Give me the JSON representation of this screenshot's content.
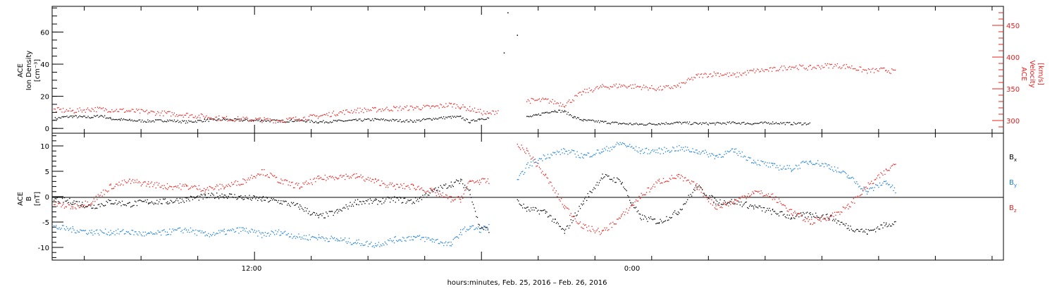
{
  "chart_data": [
    {
      "type": "scatter",
      "panel": "top",
      "ylabel_left": [
        "ACE",
        "Ion Density",
        "[cm⁻³]"
      ],
      "ylabel_right": [
        "ACE",
        "Velocity",
        "[km/s]"
      ],
      "y_left_ticks": [
        "0",
        "20",
        "40",
        "60"
      ],
      "y_left_lim": [
        -3,
        76
      ],
      "y_right_ticks": [
        "300",
        "350",
        "400",
        "450"
      ],
      "y_right_lim": [
        280,
        480
      ],
      "colors": {
        "density": "#000000",
        "velocity": "#e8201e"
      },
      "series": [
        {
          "axis": "left",
          "color": "#000000",
          "points": [
            [
              0,
              6.0
            ],
            [
              0.5,
              7
            ],
            [
              1,
              7.5
            ],
            [
              1.5,
              7
            ],
            [
              2,
              7
            ],
            [
              2.5,
              8
            ],
            [
              3,
              6
            ],
            [
              3.5,
              5.5
            ],
            [
              4,
              5
            ],
            [
              5,
              4.5
            ],
            [
              6,
              5
            ],
            [
              7,
              4
            ],
            [
              8,
              5
            ],
            [
              9,
              5.5
            ],
            [
              10,
              5
            ],
            [
              11,
              5
            ],
            [
              12,
              4.5
            ],
            [
              13,
              5
            ],
            [
              14,
              4
            ],
            [
              15,
              4.5
            ],
            [
              16,
              5
            ],
            [
              17,
              5.5
            ],
            [
              18,
              5
            ],
            [
              19,
              4.5
            ],
            [
              20,
              6
            ],
            [
              21,
              7
            ],
            [
              21.5,
              7
            ],
            [
              22,
              4
            ],
            [
              22.5,
              6
            ],
            [
              23,
              6.5
            ],
            [
              25,
              7
            ],
            [
              25.5,
              8
            ],
            [
              26,
              10
            ],
            [
              26.5,
              11
            ],
            [
              27,
              10.5
            ],
            [
              27.5,
              7
            ],
            [
              28,
              5
            ],
            [
              29,
              4
            ],
            [
              30,
              3
            ],
            [
              31,
              2.5
            ],
            [
              32,
              3
            ],
            [
              33,
              3.5
            ],
            [
              34,
              3
            ],
            [
              35,
              3
            ],
            [
              36,
              3.5
            ],
            [
              37,
              3
            ],
            [
              38,
              3.5
            ],
            [
              39,
              3
            ],
            [
              40,
              3
            ]
          ]
        },
        {
          "axis": "right",
          "color": "#e8201e",
          "points": [
            [
              0,
              317
            ],
            [
              1,
              315
            ],
            [
              2,
              318
            ],
            [
              3,
              317
            ],
            [
              4,
              315
            ],
            [
              5,
              313
            ],
            [
              6,
              311
            ],
            [
              7,
              309
            ],
            [
              8,
              306
            ],
            [
              9,
              303
            ],
            [
              10,
              302
            ],
            [
              11,
              301
            ],
            [
              12,
              300
            ],
            [
              13,
              303
            ],
            [
              14,
              307
            ],
            [
              15,
              312
            ],
            [
              16,
              316
            ],
            [
              17,
              317
            ],
            [
              18,
              319
            ],
            [
              19,
              320
            ],
            [
              20,
              321
            ],
            [
              21,
              325
            ],
            [
              21.5,
              322
            ],
            [
              22,
              318
            ],
            [
              23,
              310
            ],
            [
              23.5,
              316
            ],
            [
              25,
              331
            ],
            [
              26,
              332
            ],
            [
              27,
              325
            ],
            [
              28,
              345
            ],
            [
              29,
              353
            ],
            [
              30,
              355
            ],
            [
              31,
              353
            ],
            [
              32,
              350
            ],
            [
              33,
              354
            ],
            [
              34,
              370
            ],
            [
              35,
              374
            ],
            [
              36,
              371
            ],
            [
              37,
              378
            ],
            [
              38,
              380
            ],
            [
              39,
              385
            ],
            [
              40,
              383
            ],
            [
              41,
              387
            ],
            [
              42,
              385
            ],
            [
              43,
              378
            ],
            [
              44,
              380
            ],
            [
              44.5,
              376
            ]
          ]
        },
        {
          "axis": "left",
          "color": "#000000",
          "outliers": [
            [
              24,
              72
            ],
            [
              24.5,
              58
            ],
            [
              23.8,
              47
            ]
          ]
        }
      ]
    },
    {
      "type": "scatter",
      "panel": "bottom",
      "ylabel_left": [
        "ACE",
        "B",
        "[nT]"
      ],
      "y_ticks": [
        "-10",
        "-5",
        "0",
        "5",
        "10"
      ],
      "ylim": [
        -12.5,
        12.5
      ],
      "legend": [
        "B",
        "B",
        "B"
      ],
      "legend_sub": [
        "x",
        "y",
        "z"
      ],
      "colors": {
        "Bx": "#000000",
        "By": "#1a7fd6",
        "Bz": "#e8201e"
      },
      "series": [
        {
          "name": "Bx",
          "color": "#000000",
          "points": [
            [
              0,
              -0.5
            ],
            [
              1,
              -1
            ],
            [
              1.5,
              -1.5
            ],
            [
              2,
              -2
            ],
            [
              3,
              -1
            ],
            [
              4,
              -1.5
            ],
            [
              5,
              -1
            ],
            [
              6,
              -1
            ],
            [
              7,
              -0.5
            ],
            [
              8,
              0
            ],
            [
              9,
              0.3
            ],
            [
              10,
              -0.2
            ],
            [
              11,
              -0.5
            ],
            [
              12,
              -1
            ],
            [
              13,
              -2
            ],
            [
              14,
              -4
            ],
            [
              15,
              -3
            ],
            [
              16,
              -1
            ],
            [
              17,
              -1
            ],
            [
              18,
              -0.5
            ],
            [
              19,
              -1
            ],
            [
              20,
              1
            ],
            [
              21,
              2.5
            ],
            [
              21.5,
              3
            ],
            [
              22,
              1
            ],
            [
              22.5,
              -6
            ],
            [
              23,
              -6.5
            ],
            [
              24.5,
              -1
            ],
            [
              25,
              -2.5
            ],
            [
              26,
              -3
            ],
            [
              26.5,
              -5
            ],
            [
              27,
              -7
            ],
            [
              28,
              -1
            ],
            [
              29,
              4
            ],
            [
              30,
              3
            ],
            [
              30.5,
              -1
            ],
            [
              31,
              -4
            ],
            [
              32,
              -5
            ],
            [
              33,
              -3
            ],
            [
              34,
              2
            ],
            [
              35,
              -1
            ],
            [
              36,
              -1
            ],
            [
              37,
              -2
            ],
            [
              38,
              -3
            ],
            [
              39,
              -4
            ],
            [
              40,
              -3.5
            ],
            [
              41,
              -4
            ],
            [
              42,
              -6
            ],
            [
              43,
              -7
            ],
            [
              44,
              -5.5
            ],
            [
              44.5,
              -5
            ]
          ]
        },
        {
          "name": "By",
          "color": "#1a7fd6",
          "points": [
            [
              0,
              -6
            ],
            [
              1,
              -6.5
            ],
            [
              2,
              -7
            ],
            [
              3,
              -7
            ],
            [
              4,
              -7
            ],
            [
              5,
              -7.5
            ],
            [
              6,
              -7
            ],
            [
              7,
              -6.5
            ],
            [
              8,
              -7.5
            ],
            [
              9,
              -7
            ],
            [
              10,
              -6.5
            ],
            [
              11,
              -7.5
            ],
            [
              12,
              -7
            ],
            [
              13,
              -8
            ],
            [
              14,
              -8
            ],
            [
              15,
              -8.5
            ],
            [
              16,
              -9
            ],
            [
              17,
              -9.5
            ],
            [
              18,
              -8.5
            ],
            [
              19,
              -8
            ],
            [
              20,
              -8.5
            ],
            [
              21,
              -9.5
            ],
            [
              21.5,
              -7
            ],
            [
              22,
              -6
            ],
            [
              22.5,
              -6.5
            ],
            [
              23,
              -6
            ],
            [
              24.5,
              3
            ],
            [
              25,
              6
            ],
            [
              26,
              8
            ],
            [
              27,
              9
            ],
            [
              28,
              8
            ],
            [
              29,
              9
            ],
            [
              30,
              10.5
            ],
            [
              31,
              9
            ],
            [
              32,
              9
            ],
            [
              33,
              9.5
            ],
            [
              34,
              9
            ],
            [
              35,
              8
            ],
            [
              36,
              9
            ],
            [
              37,
              7
            ],
            [
              38,
              6
            ],
            [
              39,
              5.5
            ],
            [
              40,
              7
            ],
            [
              41,
              6
            ],
            [
              42,
              4
            ],
            [
              43,
              1
            ],
            [
              44,
              3
            ],
            [
              44.5,
              1
            ]
          ]
        },
        {
          "name": "Bz",
          "color": "#e8201e",
          "points": [
            [
              0,
              -1.5
            ],
            [
              1,
              -2
            ],
            [
              2,
              -1
            ],
            [
              3,
              2
            ],
            [
              4,
              3
            ],
            [
              5,
              2.5
            ],
            [
              6,
              2
            ],
            [
              7,
              2
            ],
            [
              8,
              1.5
            ],
            [
              9,
              2
            ],
            [
              10,
              3
            ],
            [
              11,
              5
            ],
            [
              12,
              3
            ],
            [
              13,
              2
            ],
            [
              14,
              3.5
            ],
            [
              15,
              4
            ],
            [
              16,
              4
            ],
            [
              17,
              3
            ],
            [
              18,
              2
            ],
            [
              19,
              2
            ],
            [
              20,
              1
            ],
            [
              21,
              -0.5
            ],
            [
              21.5,
              -0.5
            ],
            [
              22,
              3
            ],
            [
              22.5,
              3
            ],
            [
              23,
              3
            ],
            [
              24.5,
              10
            ],
            [
              25,
              9
            ],
            [
              26,
              4
            ],
            [
              27,
              -2
            ],
            [
              28,
              -6
            ],
            [
              29,
              -7
            ],
            [
              30,
              -4
            ],
            [
              31,
              0
            ],
            [
              32,
              3
            ],
            [
              33,
              4
            ],
            [
              34,
              2
            ],
            [
              35,
              -2
            ],
            [
              36,
              -1
            ],
            [
              37,
              1
            ],
            [
              38,
              0
            ],
            [
              39,
              -3
            ],
            [
              40,
              -5
            ],
            [
              41,
              -4
            ],
            [
              42,
              -2
            ],
            [
              43,
              2
            ],
            [
              44,
              5
            ],
            [
              44.5,
              6.5
            ]
          ]
        }
      ]
    }
  ],
  "x_axis": {
    "tick_labels": [
      "12:00",
      "0:00"
    ],
    "xlabel": "hours:minutes, Feb. 25, 2016 – Feb. 26, 2016"
  }
}
